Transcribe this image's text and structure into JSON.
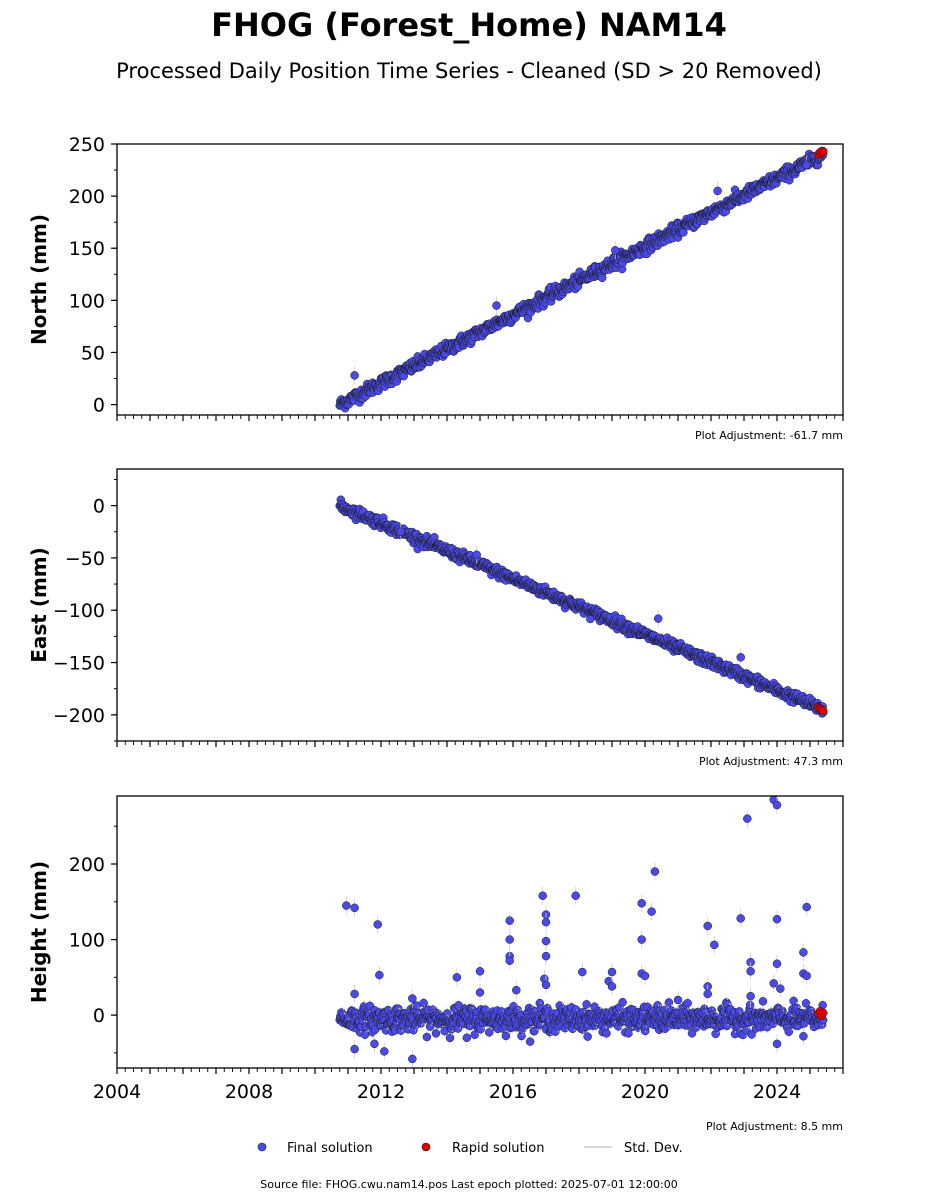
{
  "title": "FHOG (Forest_Home) NAM14",
  "subtitle": "Processed Daily Position Time Series - Cleaned (SD > 20 Removed)",
  "footer": "Source file: FHOG.cwu.nam14.pos  Last epoch plotted: 2025-07-01 12:00:00",
  "legend": {
    "placement": "bottom-center",
    "final_label": "Final solution",
    "rapid_label": "Rapid solution",
    "std_label": "Std. Dev."
  },
  "colors": {
    "final": "#4a4ae8",
    "rapid": "#e00000",
    "std": "#cccccc",
    "edge": "#1a1a1a"
  },
  "chart_data": [
    {
      "type": "scatter",
      "ylabel": "North (mm)",
      "adjustment": "Plot Adjustment: -61.7 mm",
      "xlim": [
        2004.0,
        2026.0
      ],
      "ylim": [
        -10,
        250
      ],
      "yticks": [
        0,
        50,
        100,
        150,
        200,
        250
      ],
      "ytick_labels": [
        "0",
        "50",
        "100",
        "150",
        "200",
        "250"
      ],
      "trend": {
        "x": [
          2010.75,
          2025.4
        ],
        "y": [
          0,
          240
        ],
        "noise": 3
      },
      "outliers": [
        [
          2011.2,
          28
        ],
        [
          2015.5,
          95
        ],
        [
          2019.1,
          148
        ],
        [
          2022.2,
          205
        ],
        [
          2024.9,
          230
        ]
      ],
      "rapid": [
        [
          2025.25,
          240
        ],
        [
          2025.3,
          242
        ],
        [
          2025.35,
          241
        ],
        [
          2025.4,
          243
        ]
      ]
    },
    {
      "type": "scatter",
      "ylabel": "East (mm)",
      "adjustment": "Plot Adjustment: 47.3 mm",
      "xlim": [
        2004.0,
        2026.0
      ],
      "ylim": [
        -225,
        35
      ],
      "yticks": [
        0,
        -50,
        -100,
        -150,
        -200
      ],
      "ytick_labels": [
        "0",
        "−50",
        "−100",
        "−150",
        "−200"
      ],
      "trend": {
        "x": [
          2010.75,
          2025.4
        ],
        "y": [
          0,
          -195
        ],
        "noise": 2.5
      },
      "outliers": [
        [
          2012.6,
          -25
        ],
        [
          2014.9,
          -47
        ],
        [
          2020.4,
          -108
        ],
        [
          2022.9,
          -145
        ]
      ],
      "rapid": [
        [
          2025.25,
          -193
        ],
        [
          2025.3,
          -194
        ],
        [
          2025.35,
          -195
        ],
        [
          2025.4,
          -196
        ]
      ]
    },
    {
      "type": "scatter",
      "ylabel": "Height (mm)",
      "adjustment": "Plot Adjustment: 8.5 mm",
      "xlim": [
        2004.0,
        2026.0
      ],
      "ylim": [
        -70,
        290
      ],
      "yticks": [
        0,
        100,
        200
      ],
      "ytick_labels": [
        "0",
        "100",
        "200"
      ],
      "xticks": [
        2004,
        2008,
        2012,
        2016,
        2020,
        2024
      ],
      "xtick_labels": [
        "2004",
        "2008",
        "2012",
        "2016",
        "2020",
        "2024"
      ],
      "trend": {
        "x": [
          2010.75,
          2025.4
        ],
        "y": [
          -5,
          -5
        ],
        "noise": 8
      },
      "outliers": [
        [
          2010.95,
          145
        ],
        [
          2011.2,
          142
        ],
        [
          2011.2,
          28
        ],
        [
          2011.9,
          120
        ],
        [
          2011.95,
          53
        ],
        [
          2012.95,
          22
        ],
        [
          2012.95,
          -58
        ],
        [
          2014.3,
          50
        ],
        [
          2015.0,
          58
        ],
        [
          2015.0,
          30
        ],
        [
          2015.9,
          125
        ],
        [
          2015.9,
          100
        ],
        [
          2015.9,
          78
        ],
        [
          2015.9,
          72
        ],
        [
          2016.1,
          33
        ],
        [
          2016.9,
          158
        ],
        [
          2017.0,
          133
        ],
        [
          2017.0,
          123
        ],
        [
          2017.0,
          98
        ],
        [
          2017.0,
          78
        ],
        [
          2016.95,
          48
        ],
        [
          2017.0,
          40
        ],
        [
          2017.9,
          158
        ],
        [
          2018.1,
          57
        ],
        [
          2018.9,
          45
        ],
        [
          2019.0,
          57
        ],
        [
          2019.0,
          38
        ],
        [
          2019.9,
          148
        ],
        [
          2020.2,
          137
        ],
        [
          2020.3,
          190
        ],
        [
          2019.9,
          100
        ],
        [
          2019.9,
          55
        ],
        [
          2020.0,
          52
        ],
        [
          2021.0,
          20
        ],
        [
          2021.9,
          118
        ],
        [
          2022.1,
          93
        ],
        [
          2021.9,
          38
        ],
        [
          2021.9,
          28
        ],
        [
          2022.9,
          128
        ],
        [
          2023.1,
          260
        ],
        [
          2023.2,
          70
        ],
        [
          2023.2,
          58
        ],
        [
          2023.2,
          25
        ],
        [
          2023.9,
          285
        ],
        [
          2024.0,
          278
        ],
        [
          2024.0,
          127
        ],
        [
          2024.0,
          68
        ],
        [
          2023.9,
          42
        ],
        [
          2024.1,
          35
        ],
        [
          2024.9,
          143
        ],
        [
          2024.8,
          83
        ],
        [
          2024.8,
          55
        ],
        [
          2024.9,
          52
        ],
        [
          2024.0,
          -38
        ],
        [
          2024.8,
          -28
        ],
        [
          2011.2,
          -45
        ],
        [
          2011.8,
          -38
        ],
        [
          2012.1,
          -48
        ],
        [
          2014.6,
          -30
        ]
      ],
      "rapid": [
        [
          2025.25,
          2
        ],
        [
          2025.3,
          5
        ],
        [
          2025.35,
          -1
        ],
        [
          2025.4,
          3
        ]
      ]
    }
  ]
}
